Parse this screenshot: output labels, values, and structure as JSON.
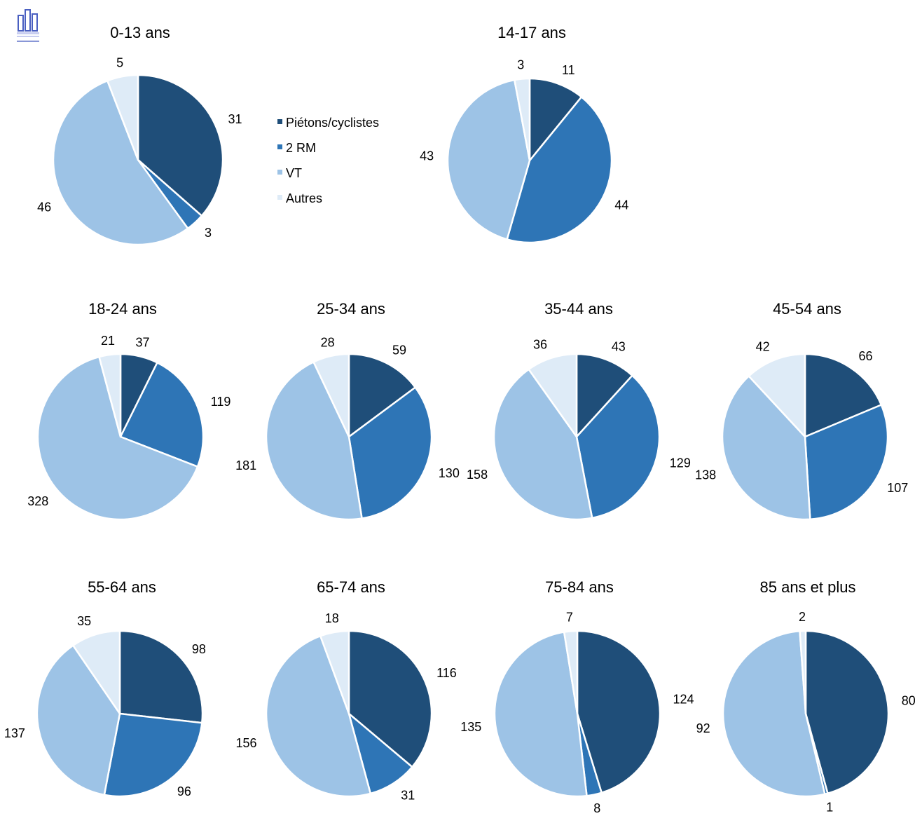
{
  "colors": {
    "Piétons/cyclistes": "#1f4e79",
    "2 RM": "#2e75b6",
    "VT": "#9dc3e6",
    "Autres": "#deebf7"
  },
  "logo": {
    "icon": "statistique-building-logo-icon",
    "text": "STATISTIQUE PUBLIQUE"
  },
  "legend": {
    "placement": "center-top",
    "items": [
      "Piétons/cyclistes",
      "2 RM",
      "VT",
      "Autres"
    ]
  },
  "chart_data": [
    {
      "type": "pie",
      "title": "0-13 ans",
      "categories": [
        "Piétons/cyclistes",
        "2 RM",
        "VT",
        "Autres"
      ],
      "values": [
        31,
        3,
        46,
        5
      ]
    },
    {
      "type": "pie",
      "title": "14-17 ans",
      "categories": [
        "Piétons/cyclistes",
        "2 RM",
        "VT",
        "Autres"
      ],
      "values": [
        11,
        44,
        43,
        3
      ]
    },
    {
      "type": "pie",
      "title": "18-24 ans",
      "categories": [
        "Piétons/cyclistes",
        "2 RM",
        "VT",
        "Autres"
      ],
      "values": [
        37,
        119,
        328,
        21
      ]
    },
    {
      "type": "pie",
      "title": "25-34 ans",
      "categories": [
        "Piétons/cyclistes",
        "2 RM",
        "VT",
        "Autres"
      ],
      "values": [
        59,
        130,
        181,
        28
      ]
    },
    {
      "type": "pie",
      "title": "35-44 ans",
      "categories": [
        "Piétons/cyclistes",
        "2 RM",
        "VT",
        "Autres"
      ],
      "values": [
        43,
        129,
        158,
        36
      ]
    },
    {
      "type": "pie",
      "title": "45-54 ans",
      "categories": [
        "Piétons/cyclistes",
        "2 RM",
        "VT",
        "Autres"
      ],
      "values": [
        66,
        107,
        138,
        42
      ]
    },
    {
      "type": "pie",
      "title": "55-64 ans",
      "categories": [
        "Piétons/cyclistes",
        "2 RM",
        "VT",
        "Autres"
      ],
      "values": [
        98,
        96,
        137,
        35
      ]
    },
    {
      "type": "pie",
      "title": "65-74 ans",
      "categories": [
        "Piétons/cyclistes",
        "2 RM",
        "VT",
        "Autres"
      ],
      "values": [
        116,
        31,
        156,
        18
      ]
    },
    {
      "type": "pie",
      "title": "75-84 ans",
      "categories": [
        "Piétons/cyclistes",
        "2 RM",
        "VT",
        "Autres"
      ],
      "values": [
        124,
        8,
        135,
        7
      ]
    },
    {
      "type": "pie",
      "title": "85 ans et plus",
      "categories": [
        "Piétons/cyclistes",
        "2 RM",
        "VT",
        "Autres"
      ],
      "values": [
        80,
        1,
        92,
        2
      ]
    }
  ]
}
